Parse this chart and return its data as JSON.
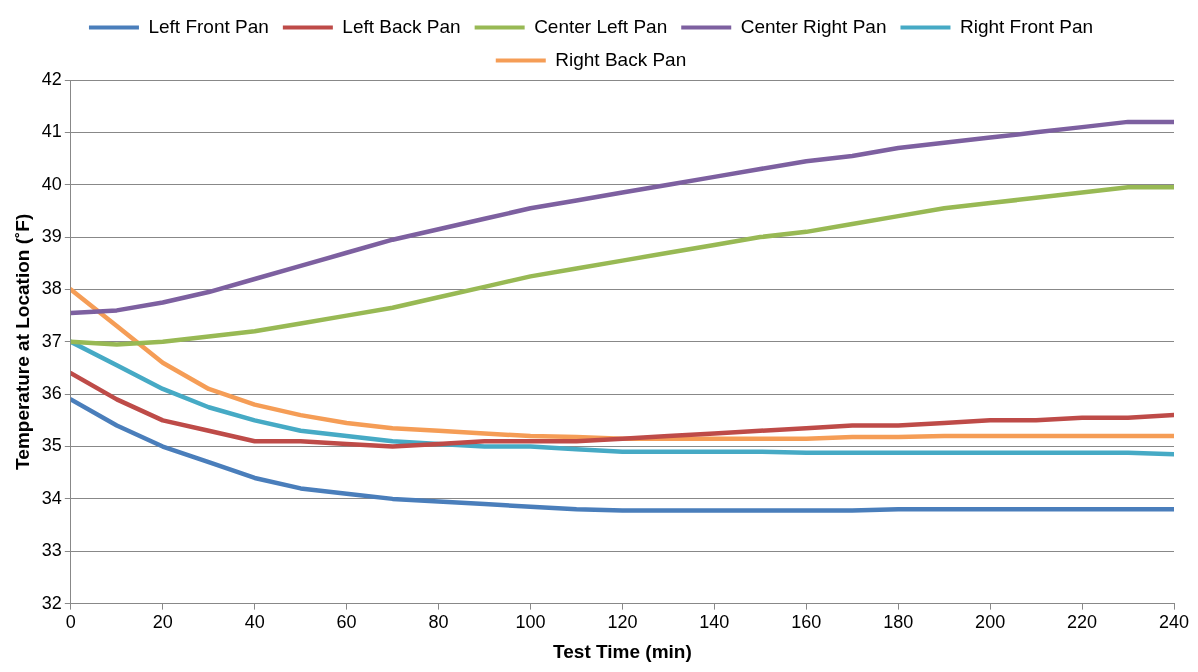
{
  "chart_data": {
    "type": "line",
    "xlabel": "Test Time (min)",
    "ylabel": "Temperature at Location (˚F)",
    "x": [
      0,
      10,
      20,
      30,
      40,
      50,
      60,
      70,
      80,
      90,
      100,
      110,
      120,
      130,
      140,
      150,
      160,
      170,
      180,
      190,
      200,
      210,
      220,
      230,
      240
    ],
    "series": [
      {
        "name": "Left Front Pan",
        "color": "#4a7ebb",
        "values": [
          35.9,
          35.4,
          35.0,
          34.7,
          34.4,
          34.2,
          34.1,
          34.0,
          33.95,
          33.9,
          33.85,
          33.8,
          33.78,
          33.78,
          33.78,
          33.78,
          33.78,
          33.78,
          33.8,
          33.8,
          33.8,
          33.8,
          33.8,
          33.8,
          33.8
        ]
      },
      {
        "name": "Left Back Pan",
        "color": "#be4b48",
        "values": [
          36.4,
          35.9,
          35.5,
          35.3,
          35.1,
          35.1,
          35.05,
          35.0,
          35.05,
          35.1,
          35.1,
          35.1,
          35.15,
          35.2,
          35.25,
          35.3,
          35.35,
          35.4,
          35.4,
          35.45,
          35.5,
          35.5,
          35.55,
          35.55,
          35.6
        ]
      },
      {
        "name": "Center Left Pan",
        "color": "#98b954",
        "values": [
          37.0,
          36.95,
          37.0,
          37.1,
          37.2,
          37.35,
          37.5,
          37.65,
          37.85,
          38.05,
          38.25,
          38.4,
          38.55,
          38.7,
          38.85,
          39.0,
          39.1,
          39.25,
          39.4,
          39.55,
          39.65,
          39.75,
          39.85,
          39.95,
          39.95
        ]
      },
      {
        "name": "Center Right Pan",
        "color": "#7d60a0",
        "values": [
          37.55,
          37.6,
          37.75,
          37.95,
          38.2,
          38.45,
          38.7,
          38.95,
          39.15,
          39.35,
          39.55,
          39.7,
          39.85,
          40.0,
          40.15,
          40.3,
          40.45,
          40.55,
          40.7,
          40.8,
          40.9,
          41.0,
          41.1,
          41.2,
          41.2
        ]
      },
      {
        "name": "Right Front Pan",
        "color": "#46aac5",
        "values": [
          37.0,
          36.55,
          36.1,
          35.75,
          35.5,
          35.3,
          35.2,
          35.1,
          35.05,
          35.0,
          35.0,
          34.95,
          34.9,
          34.9,
          34.9,
          34.9,
          34.88,
          34.88,
          34.88,
          34.88,
          34.88,
          34.88,
          34.88,
          34.88,
          34.85
        ]
      },
      {
        "name": "Right Back Pan",
        "color": "#f59d56",
        "values": [
          38.0,
          37.3,
          36.6,
          36.1,
          35.8,
          35.6,
          35.45,
          35.35,
          35.3,
          35.25,
          35.2,
          35.18,
          35.15,
          35.15,
          35.15,
          35.15,
          35.15,
          35.18,
          35.18,
          35.2,
          35.2,
          35.2,
          35.2,
          35.2,
          35.2
        ]
      }
    ],
    "xlim": [
      0,
      240
    ],
    "xticks": [
      0,
      20,
      40,
      60,
      80,
      100,
      120,
      140,
      160,
      180,
      200,
      220,
      240
    ],
    "ylim": [
      32,
      42
    ],
    "yticks": [
      32,
      33,
      34,
      35,
      36,
      37,
      38,
      39,
      40,
      41,
      42
    ],
    "grid": "y",
    "legend": "top",
    "marker": "none",
    "line_style": "solid"
  }
}
